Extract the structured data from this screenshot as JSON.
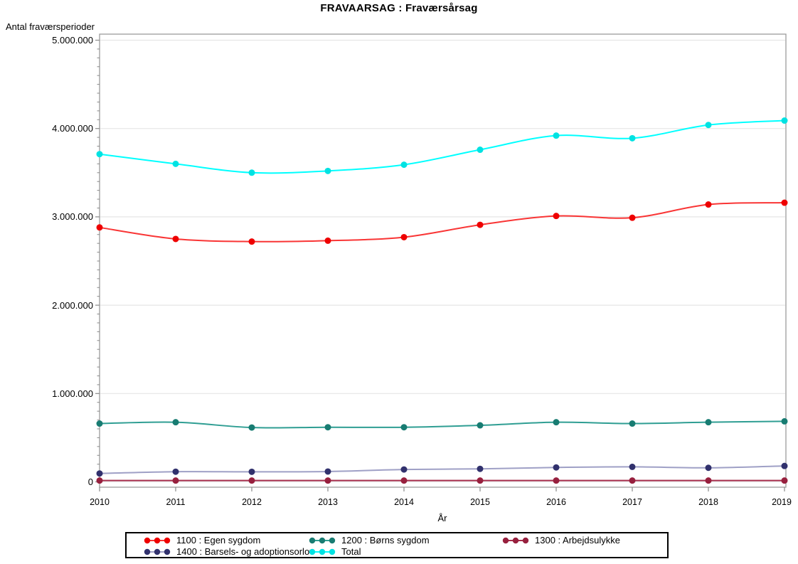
{
  "title": "FRAVAARSAG : Fraværsårsag",
  "y_axis": {
    "title": "Antal fraværsperioder",
    "ticks": [
      {
        "label": "5.000.000",
        "value": 5000000
      },
      {
        "label": "4.000.000",
        "value": 4000000
      },
      {
        "label": "3.000.000",
        "value": 3000000
      },
      {
        "label": "2.000.000",
        "value": 2000000
      },
      {
        "label": "1.000.000",
        "value": 1000000
      },
      {
        "label": "0",
        "value": 0
      }
    ],
    "minor_step": 100000
  },
  "x_axis": {
    "title": "År",
    "ticks": [
      "2010",
      "2011",
      "2012",
      "2013",
      "2014",
      "2015",
      "2016",
      "2017",
      "2018",
      "2019"
    ]
  },
  "colors": {
    "gridline": "#e6e6e6",
    "frame": "#9c9c9c",
    "tick": "#8a8a8a",
    "legend_border": "#000000"
  },
  "chart_data": {
    "type": "line",
    "title": "FRAVAARSAG : Fraværsårsag",
    "xlabel": "År",
    "ylabel": "Antal fraværsperioder",
    "x": [
      2010,
      2011,
      2012,
      2013,
      2014,
      2015,
      2016,
      2017,
      2018,
      2019
    ],
    "ylim": [
      0,
      5000000
    ],
    "grid": "horizontal-only",
    "legend_position": "bottom",
    "marker": "filled-circle",
    "line_style": "smooth",
    "series": [
      {
        "name": "1100 : Egen sygdom",
        "line_color": "#f93535",
        "marker_color": "#ee0000",
        "values": [
          2880000,
          2750000,
          2720000,
          2730000,
          2770000,
          2910000,
          3010000,
          2990000,
          3140000,
          3160000
        ]
      },
      {
        "name": "1200 : Børns sygdom",
        "line_color": "#2f9e93",
        "marker_color": "#187c72",
        "values": [
          660000,
          675000,
          615000,
          618000,
          618000,
          640000,
          675000,
          660000,
          675000,
          685000
        ]
      },
      {
        "name": "1300 : Arbejdsulykke",
        "line_color": "#a52c4a",
        "marker_color": "#97203e",
        "values": [
          15000,
          15000,
          15000,
          15000,
          15000,
          15000,
          15000,
          15000,
          15000,
          15000
        ]
      },
      {
        "name": "1400 : Barsels- og adoptionsorlov",
        "line_color": "#9fa0c6",
        "marker_color": "#31316d",
        "values": [
          95000,
          115000,
          114000,
          117000,
          140000,
          147000,
          163000,
          170000,
          159000,
          180000
        ]
      },
      {
        "name": "Total",
        "line_color": "#00ffff",
        "marker_color": "#00e2e2",
        "values": [
          3710000,
          3600000,
          3500000,
          3520000,
          3590000,
          3760000,
          3920000,
          3890000,
          4040000,
          4090000
        ]
      }
    ]
  }
}
